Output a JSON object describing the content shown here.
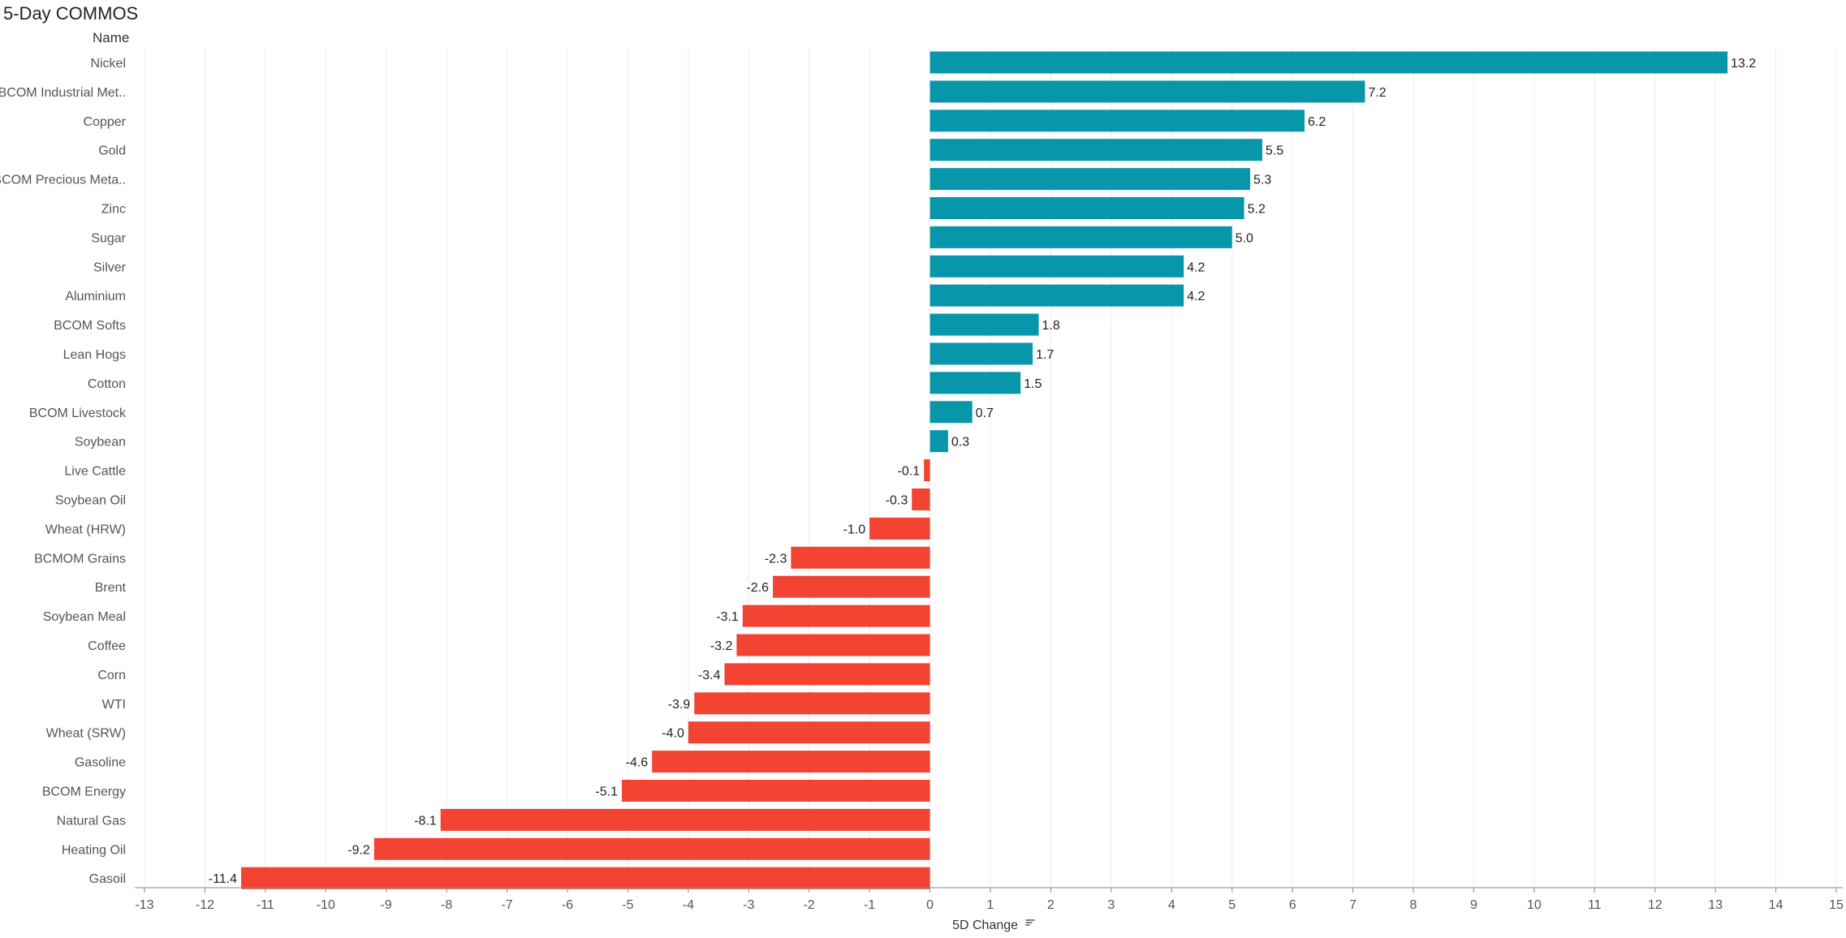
{
  "title": "5-Day COMMOS",
  "row_header": "Name",
  "colors": {
    "positive": "#0896aa",
    "negative": "#f24333",
    "grid": "#ececec",
    "axis": "#888888"
  },
  "chart_data": {
    "type": "bar",
    "orientation": "horizontal",
    "title": "5-Day COMMOS",
    "xlabel": "5D Change",
    "ylabel": "Name",
    "xlim": [
      -13,
      15
    ],
    "xticks": [
      -13,
      -12,
      -11,
      -10,
      -9,
      -8,
      -7,
      -6,
      -5,
      -4,
      -3,
      -2,
      -1,
      0,
      1,
      2,
      3,
      4,
      5,
      6,
      7,
      8,
      9,
      10,
      11,
      12,
      13,
      14,
      15
    ],
    "grid": true,
    "sorted": "descending",
    "categories": [
      "Nickel",
      "BCOM Industrial Met..",
      "Copper",
      "Gold",
      "BCOM Precious Meta..",
      "Zinc",
      "Sugar",
      "Silver",
      "Aluminium",
      "BCOM Softs",
      "Lean Hogs",
      "Cotton",
      "BCOM Livestock",
      "Soybean",
      "Live Cattle",
      "Soybean Oil",
      "Wheat (HRW)",
      "BCMOM Grains",
      "Brent",
      "Soybean Meal",
      "Coffee",
      "Corn",
      "WTI",
      "Wheat (SRW)",
      "Gasoline",
      "BCOM Energy",
      "Natural Gas",
      "Heating Oil",
      "Gasoil"
    ],
    "values": [
      13.2,
      7.2,
      6.2,
      5.5,
      5.3,
      5.2,
      5.0,
      4.2,
      4.2,
      1.8,
      1.7,
      1.5,
      0.7,
      0.3,
      -0.1,
      -0.3,
      -1.0,
      -2.3,
      -2.6,
      -3.1,
      -3.2,
      -3.4,
      -3.9,
      -4.0,
      -4.6,
      -5.1,
      -8.1,
      -9.2,
      -11.4
    ]
  }
}
